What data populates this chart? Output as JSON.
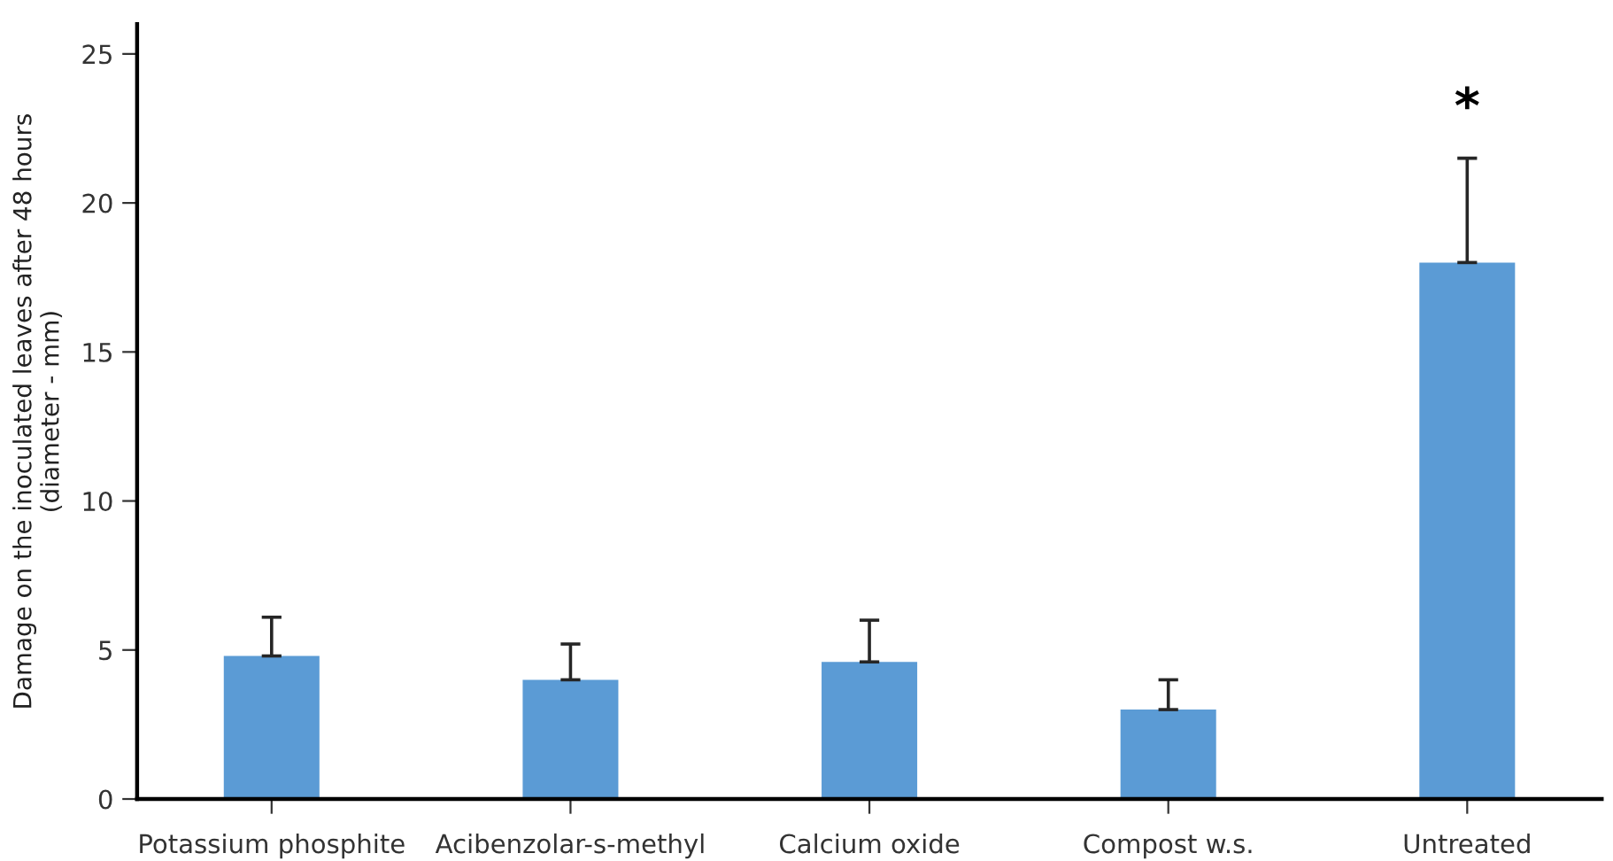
{
  "chart_data": {
    "type": "bar",
    "ylabel": "Damage on the inoculated leaves after 48 hours\n(diameter - mm)",
    "categories": [
      "Potassium phosphite",
      "Acibenzolar-s-methyl",
      "Calcium oxide",
      "Compost w.s.",
      "Untreated"
    ],
    "values": [
      4.8,
      4.0,
      4.6,
      3.0,
      18.0
    ],
    "errors": [
      1.3,
      1.2,
      1.4,
      1.0,
      3.5
    ],
    "color": "#5b9bd5",
    "ylim": [
      0,
      26
    ],
    "yticks": [
      0,
      5,
      10,
      15,
      20,
      25
    ],
    "grid": false,
    "annotations": [
      "*"
    ]
  }
}
